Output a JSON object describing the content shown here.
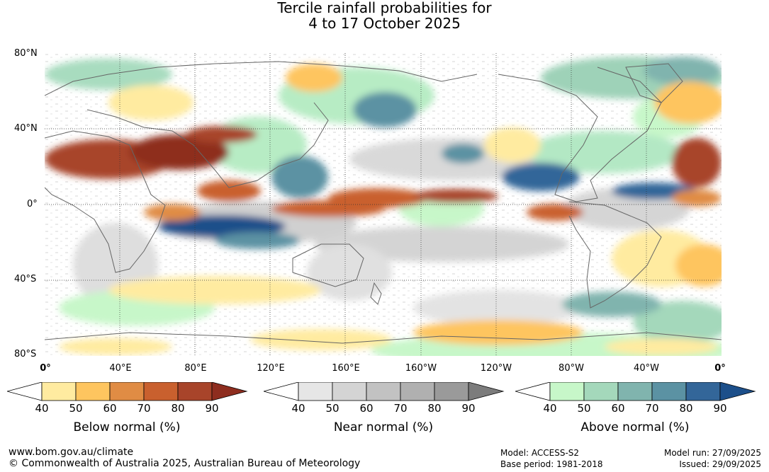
{
  "title": {
    "line1": "Tercile rainfall probabilities for",
    "line2": "4 to 17 October 2025"
  },
  "map": {
    "lat_labels": [
      "80°N",
      "40°N",
      "0°",
      "40°S",
      "80°S"
    ],
    "lon_labels": [
      "0°",
      "40°E",
      "80°E",
      "120°E",
      "160°E",
      "160°W",
      "120°W",
      "80°W",
      "40°W",
      "0°"
    ]
  },
  "legends": [
    {
      "title": "Below normal (%)",
      "ticks": [
        "40",
        "50",
        "60",
        "70",
        "80",
        "90"
      ],
      "colors": [
        "#ffffff",
        "#ffeba0",
        "#fec55f",
        "#e08c44",
        "#c9602e",
        "#a8442a",
        "#8e2d1f"
      ]
    },
    {
      "title": "Near normal (%)",
      "ticks": [
        "40",
        "50",
        "60",
        "70",
        "80",
        "90"
      ],
      "colors": [
        "#ffffff",
        "#e6e6e6",
        "#d4d4d4",
        "#c2c2c2",
        "#b0b0b0",
        "#9a9a9a",
        "#7c7c7c"
      ]
    },
    {
      "title": "Above normal (%)",
      "ticks": [
        "40",
        "50",
        "60",
        "70",
        "80",
        "90"
      ],
      "colors": [
        "#ffffff",
        "#c7f7c9",
        "#a4d8bb",
        "#80b4ae",
        "#5b92a3",
        "#336699",
        "#1c4f8a"
      ]
    }
  ],
  "footer": {
    "url": "www.bom.gov.au/climate",
    "copyright": "© Commonwealth of Australia 2025, Australian Bureau of Meteorology",
    "model": "Model: ACCESS-S2",
    "base_period": "Base period: 1981-2018",
    "model_run": "Model run: 27/09/2025",
    "issued": "Issued: 29/09/2025"
  }
}
